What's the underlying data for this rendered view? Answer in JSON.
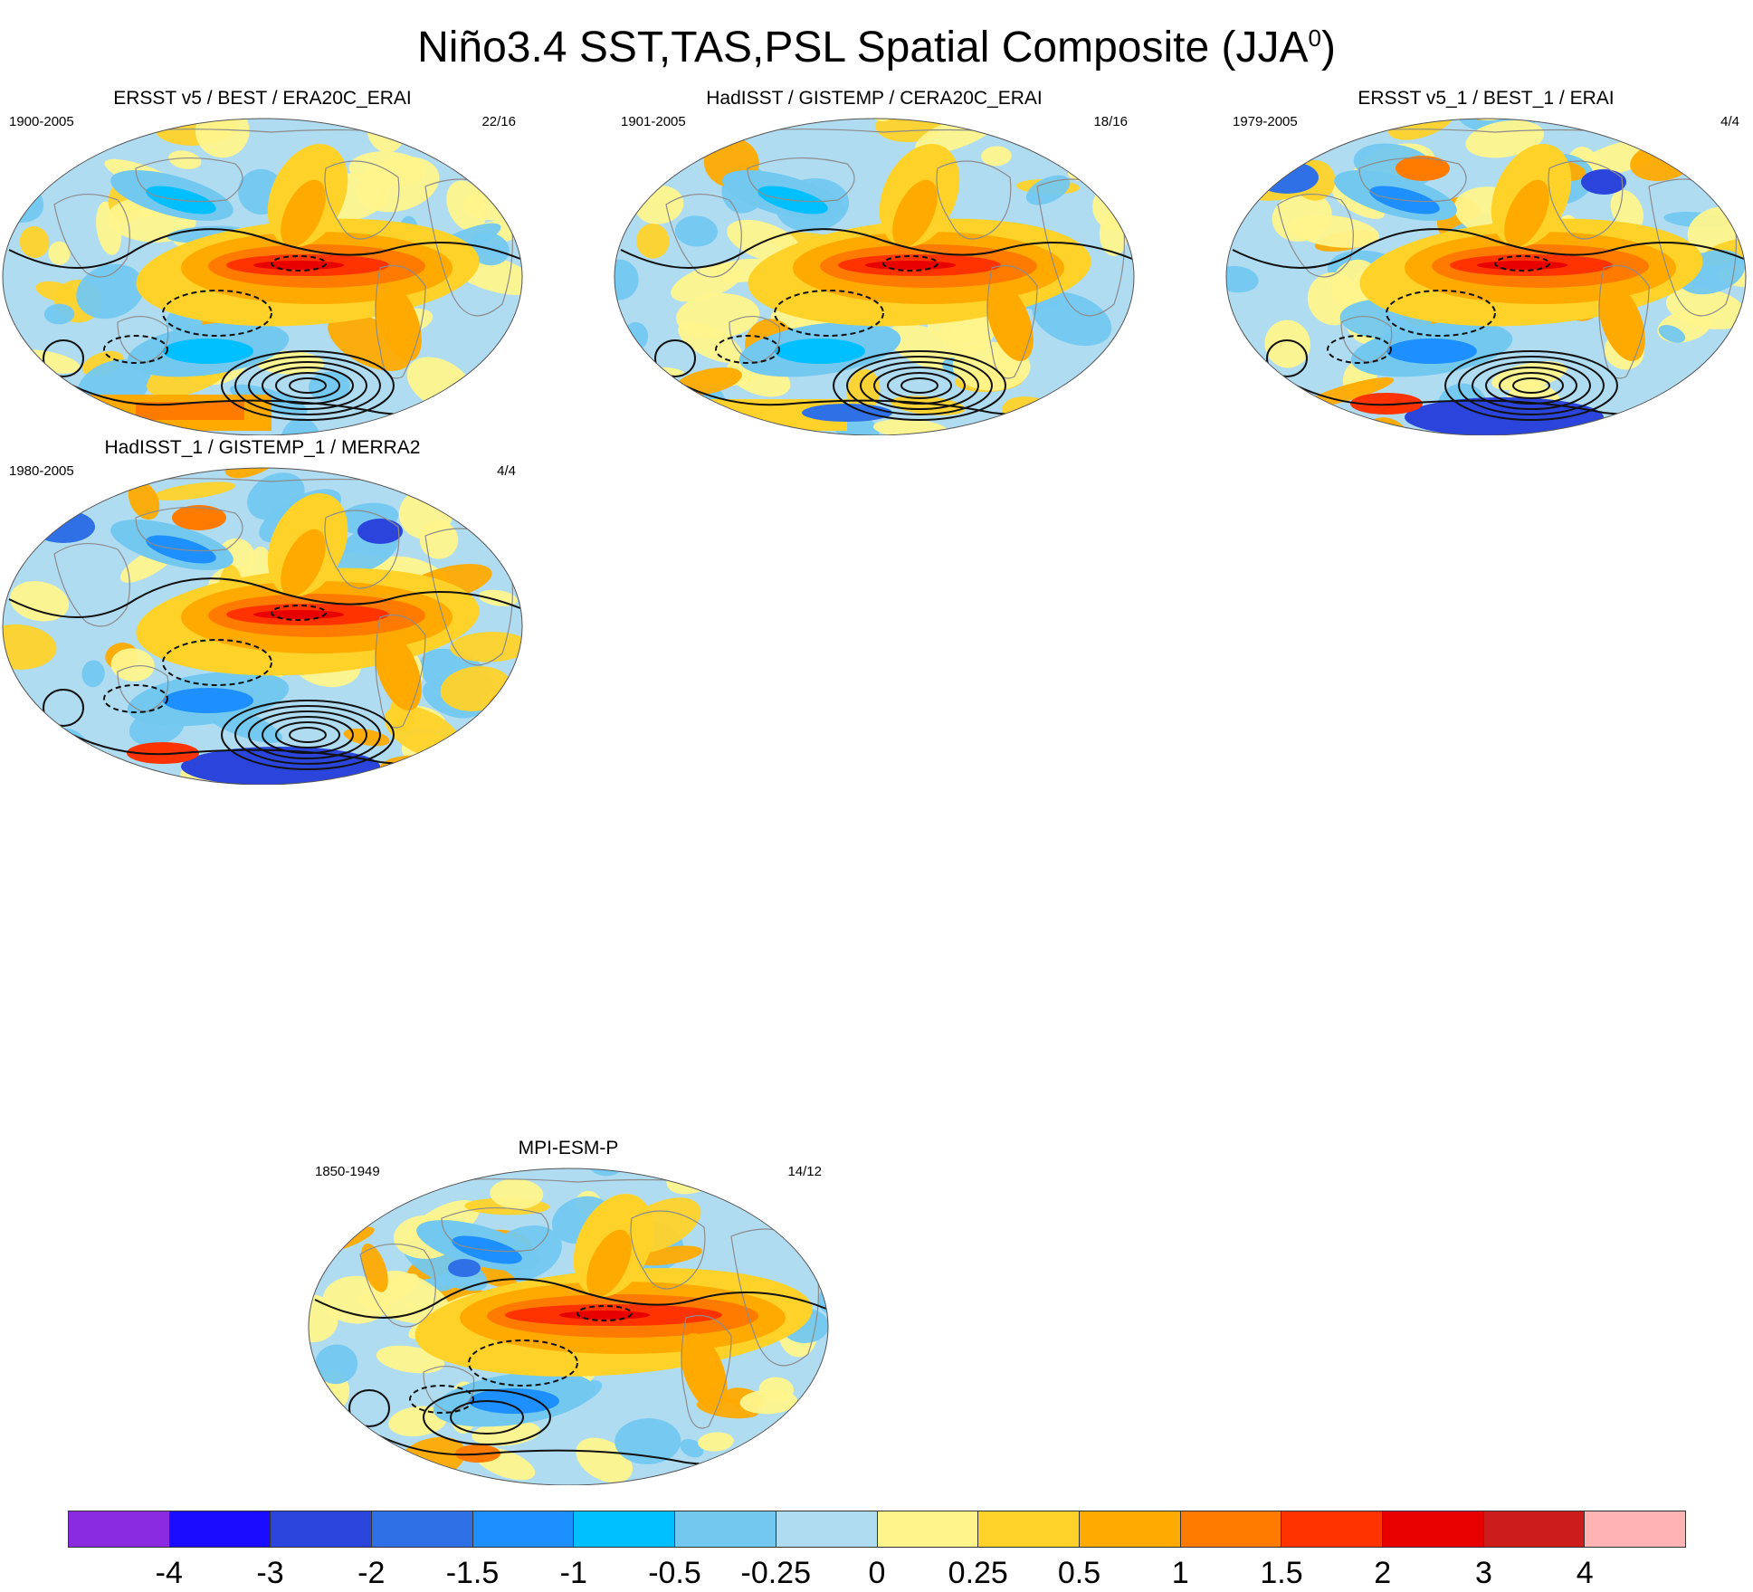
{
  "title_main": "Niño3.4 SST,TAS,PSL Spatial Composite (JJA",
  "title_sup": "0",
  "title_close": ")",
  "panels": [
    {
      "title": "ERSST v5 / BEST / ERA20C_ERAI",
      "period": "1900-2005",
      "count": "22/16",
      "variant": 0
    },
    {
      "title": "HadISST / GISTEMP / CERA20C_ERAI",
      "period": "1901-2005",
      "count": "18/16",
      "variant": 1
    },
    {
      "title": "ERSST v5_1 / BEST_1 / ERAI",
      "period": "1979-2005",
      "count": "4/4",
      "variant": 2
    },
    {
      "title": "HadISST_1 / GISTEMP_1 / MERRA2",
      "period": "1980-2005",
      "count": "4/4",
      "variant": 3
    },
    {
      "title": "MPI-ESM-P",
      "period": "1850-1949",
      "count": "14/12",
      "variant": 4
    }
  ],
  "colorbar": {
    "colors": [
      "#8a2be2",
      "#1a0dff",
      "#2b45dc",
      "#2f70e6",
      "#1e8fff",
      "#00bfff",
      "#73c8f0",
      "#b0dcf2",
      "#fff48c",
      "#ffd22a",
      "#ffaa00",
      "#ff7b00",
      "#ff3300",
      "#e80000",
      "#cc1c1c",
      "#ffb3b3"
    ],
    "labels": [
      "-4",
      "-3",
      "-2",
      "-1.5",
      "-1",
      "-0.5",
      "-0.25",
      "0",
      "0.25",
      "0.5",
      "1",
      "1.5",
      "2",
      "3",
      "4"
    ]
  }
}
